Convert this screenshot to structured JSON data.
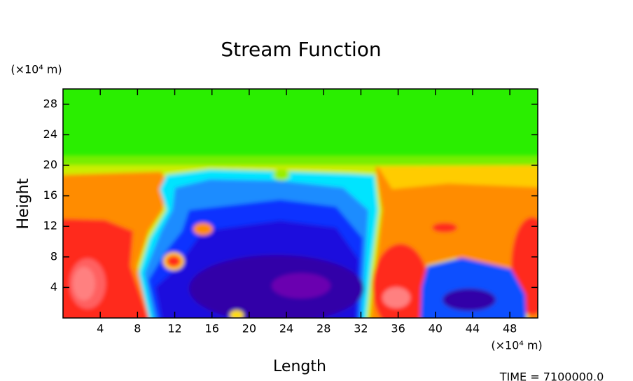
{
  "chart_data": {
    "type": "contour",
    "title": "Stream Function",
    "x_label": "Length",
    "y_label": "Height",
    "x_unit": "(×10⁴ m)",
    "y_unit": "(×10⁴ m)",
    "time_label": "TIME = 7100000.0",
    "xlim": [
      0,
      51
    ],
    "ylim": [
      0,
      30
    ],
    "xticks": [
      4,
      8,
      12,
      16,
      20,
      24,
      28,
      32,
      36,
      40,
      44,
      48
    ],
    "yticks": [
      4,
      8,
      12,
      16,
      20,
      24,
      28
    ]
  }
}
